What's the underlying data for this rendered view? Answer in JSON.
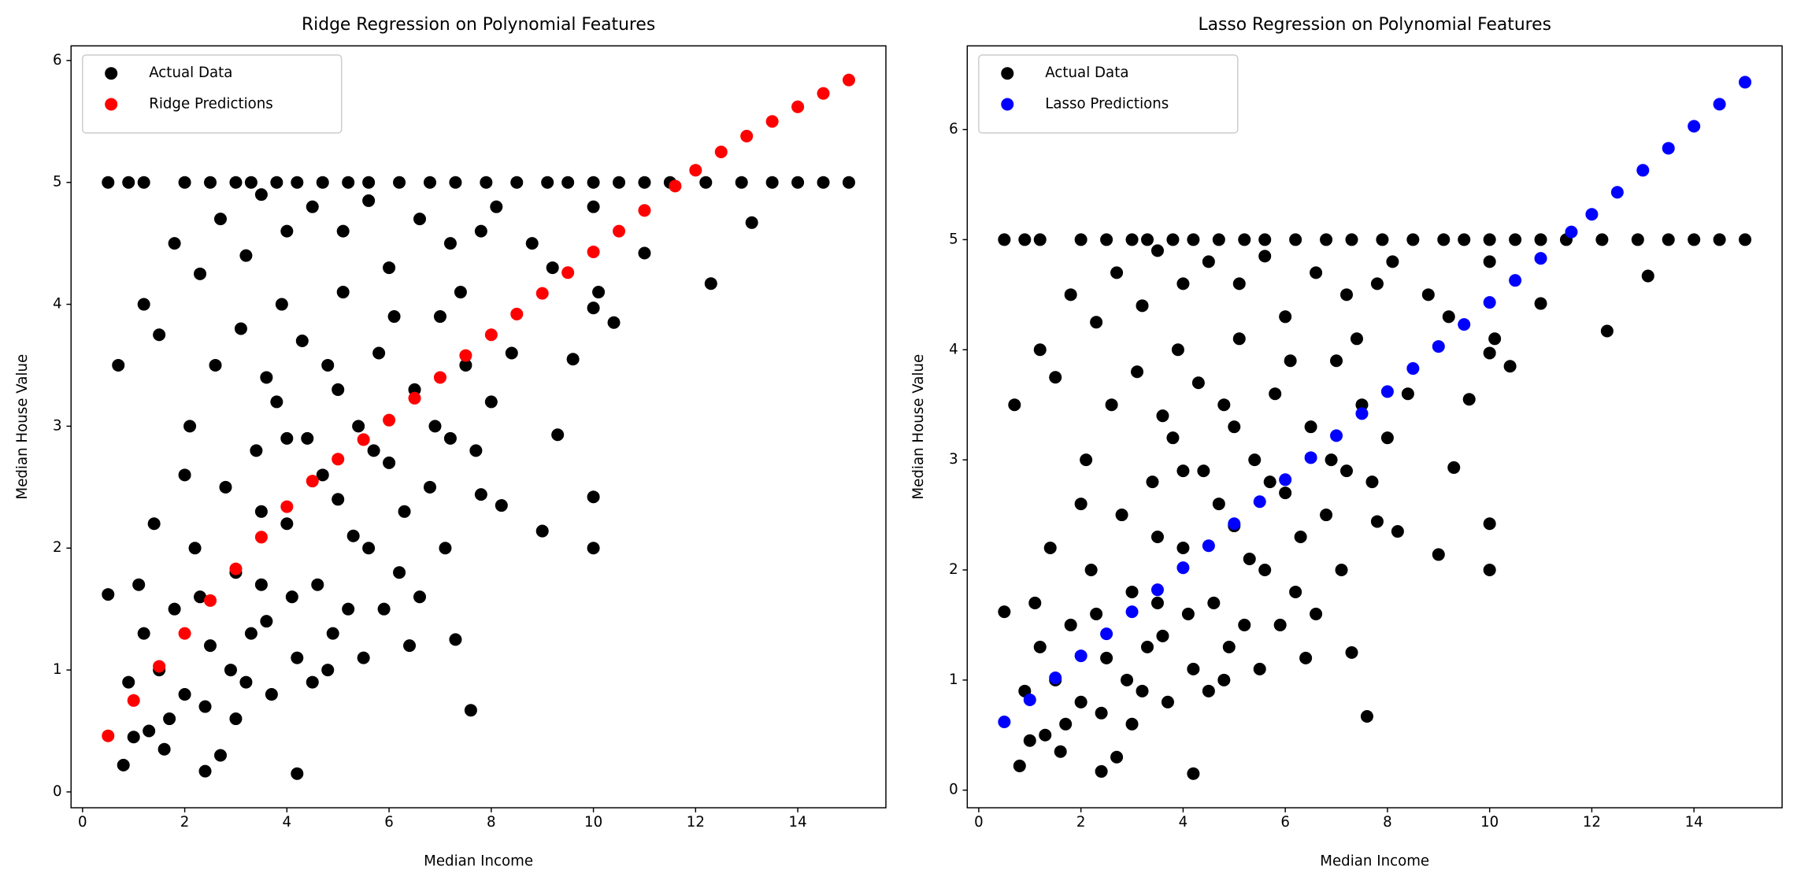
{
  "chart_data": [
    {
      "type": "scatter",
      "title": "Ridge Regression on Polynomial Features",
      "xlabel": "Median Income",
      "ylabel": "Median House Value",
      "xlim": [
        -0.225,
        15.725
      ],
      "ylim": [
        -0.13,
        6.12
      ],
      "xticks": [
        0,
        2,
        4,
        6,
        8,
        10,
        12,
        14
      ],
      "yticks": [
        0,
        1,
        2,
        3,
        4,
        5,
        6
      ],
      "legend": "upper left",
      "series": [
        {
          "name": "Actual Data",
          "color": "#000000",
          "x": [
            0.5,
            0.9,
            1.2,
            2,
            2.5,
            3,
            3.3,
            3.8,
            4.2,
            4.7,
            5.2,
            5.6,
            6.2,
            6.8,
            7.3,
            7.9,
            8.5,
            9.1,
            9.5,
            10,
            10.5,
            11,
            11.5,
            12.2,
            12.9,
            13.5,
            14,
            14.5,
            15,
            0.5,
            0.7,
            0.8,
            1.2,
            1.5,
            1.8,
            2.3,
            2.7,
            3.2,
            3.5,
            4.0,
            4.5,
            5.1,
            5.6,
            6.0,
            6.6,
            7.2,
            7.8,
            8.1,
            8.8,
            9.2,
            10.0,
            11.0,
            13.1,
            12.3,
            10.4,
            10.1,
            10.0,
            9.6,
            9.3,
            10.0,
            10.0,
            9.0,
            8.2,
            7.8,
            7.6,
            7.3,
            4.2,
            2.4,
            2.7,
            1.6,
            1.0,
            1.5,
            1.8,
            2.0,
            2.2,
            2.5,
            2.8,
            3.0,
            3.2,
            3.4,
            3.6,
            3.8,
            4.0,
            4.2,
            4.4,
            4.6,
            4.8,
            5.0,
            5.2,
            5.4,
            5.6,
            5.8,
            6.0,
            6.2,
            6.5,
            6.8,
            7.0,
            7.2,
            7.5,
            8.0,
            1.2,
            1.4,
            1.7,
            2.1,
            2.4,
            2.6,
            2.9,
            3.1,
            3.3,
            3.5,
            3.7,
            3.9,
            4.1,
            4.3,
            4.5,
            4.7,
            4.9,
            5.1,
            5.3,
            5.5,
            5.7,
            5.9,
            6.1,
            6.3,
            6.6,
            6.9,
            7.1,
            7.4,
            7.7,
            8.4,
            0.9,
            1.1,
            1.3,
            2.0,
            2.3,
            3.0,
            3.6,
            4.8,
            6.4,
            5.0,
            4.0,
            3.5
          ],
          "values": [
            5,
            5,
            5,
            5,
            5,
            5,
            5,
            5,
            5,
            5,
            5,
            5,
            5,
            5,
            5,
            5,
            5,
            5,
            5,
            5,
            5,
            5,
            5,
            5,
            5,
            5,
            5,
            5,
            5,
            1.62,
            3.5,
            0.22,
            4.0,
            3.75,
            4.5,
            4.25,
            4.7,
            4.4,
            4.9,
            4.6,
            4.8,
            4.6,
            4.85,
            4.3,
            4.7,
            4.5,
            4.6,
            4.8,
            4.5,
            4.3,
            4.8,
            4.42,
            4.67,
            4.17,
            3.85,
            4.1,
            3.97,
            3.55,
            2.93,
            2.42,
            2.0,
            2.14,
            2.35,
            2.44,
            0.67,
            1.25,
            0.15,
            0.17,
            0.3,
            0.35,
            0.45,
            1.0,
            1.5,
            0.8,
            2.0,
            1.2,
            2.5,
            1.8,
            0.9,
            2.8,
            1.4,
            3.2,
            2.2,
            1.1,
            2.9,
            1.7,
            3.5,
            2.4,
            1.5,
            3.0,
            2.0,
            3.6,
            2.7,
            1.8,
            3.3,
            2.5,
            3.9,
            2.9,
            3.5,
            3.2,
            1.3,
            2.2,
            0.6,
            3.0,
            0.7,
            3.5,
            1.0,
            3.8,
            1.3,
            2.3,
            0.8,
            4.0,
            1.6,
            3.7,
            0.9,
            2.6,
            1.3,
            4.1,
            2.1,
            1.1,
            2.8,
            1.5,
            3.9,
            2.3,
            1.6,
            3.0,
            2.0,
            4.1,
            2.8,
            3.6,
            0.9,
            1.7,
            0.5,
            2.6,
            1.6,
            0.6,
            3.4,
            1.0,
            1.2,
            3.3,
            2.9,
            1.7
          ]
        },
        {
          "name": "Ridge Predictions",
          "color": "#ff0000",
          "x": [
            0.5,
            1,
            1.5,
            2,
            2.5,
            3,
            3.5,
            4,
            4.5,
            5,
            5.5,
            6,
            6.5,
            7,
            7.5,
            8,
            8.5,
            9,
            9.5,
            10,
            10.5,
            11,
            11.6,
            12,
            12.5,
            13,
            13.5,
            14,
            14.5,
            15
          ],
          "values": [
            0.46,
            0.75,
            1.03,
            1.3,
            1.57,
            1.83,
            2.09,
            2.34,
            2.55,
            2.73,
            2.89,
            3.05,
            3.23,
            3.4,
            3.58,
            3.75,
            3.92,
            4.09,
            4.26,
            4.43,
            4.6,
            4.77,
            4.97,
            5.1,
            5.25,
            5.38,
            5.5,
            5.62,
            5.73,
            5.84
          ]
        }
      ]
    },
    {
      "type": "scatter",
      "title": "Lasso Regression on Polynomial Features",
      "xlabel": "Median Income",
      "ylabel": "Median House Value",
      "xlim": [
        -0.225,
        15.725
      ],
      "ylim": [
        -0.16,
        6.76
      ],
      "xticks": [
        0,
        2,
        4,
        6,
        8,
        10,
        12,
        14
      ],
      "yticks": [
        0,
        1,
        2,
        3,
        4,
        5,
        6
      ],
      "legend": "upper left",
      "series": [
        {
          "name": "Actual Data",
          "color": "#000000",
          "x": [
            0.5,
            0.9,
            1.2,
            2,
            2.5,
            3,
            3.3,
            3.8,
            4.2,
            4.7,
            5.2,
            5.6,
            6.2,
            6.8,
            7.3,
            7.9,
            8.5,
            9.1,
            9.5,
            10,
            10.5,
            11,
            11.5,
            12.2,
            12.9,
            13.5,
            14,
            14.5,
            15,
            0.5,
            0.7,
            0.8,
            1.2,
            1.5,
            1.8,
            2.3,
            2.7,
            3.2,
            3.5,
            4.0,
            4.5,
            5.1,
            5.6,
            6.0,
            6.6,
            7.2,
            7.8,
            8.1,
            8.8,
            9.2,
            10.0,
            11.0,
            13.1,
            12.3,
            10.4,
            10.1,
            10.0,
            9.6,
            9.3,
            10.0,
            10.0,
            9.0,
            8.2,
            7.8,
            7.6,
            7.3,
            4.2,
            2.4,
            2.7,
            1.6,
            1.0,
            1.5,
            1.8,
            2.0,
            2.2,
            2.5,
            2.8,
            3.0,
            3.2,
            3.4,
            3.6,
            3.8,
            4.0,
            4.2,
            4.4,
            4.6,
            4.8,
            5.0,
            5.2,
            5.4,
            5.6,
            5.8,
            6.0,
            6.2,
            6.5,
            6.8,
            7.0,
            7.2,
            7.5,
            8.0,
            1.2,
            1.4,
            1.7,
            2.1,
            2.4,
            2.6,
            2.9,
            3.1,
            3.3,
            3.5,
            3.7,
            3.9,
            4.1,
            4.3,
            4.5,
            4.7,
            4.9,
            5.1,
            5.3,
            5.5,
            5.7,
            5.9,
            6.1,
            6.3,
            6.6,
            6.9,
            7.1,
            7.4,
            7.7,
            8.4,
            0.9,
            1.1,
            1.3,
            2.0,
            2.3,
            3.0,
            3.6,
            4.8,
            6.4,
            5.0,
            4.0,
            3.5
          ],
          "values": [
            5,
            5,
            5,
            5,
            5,
            5,
            5,
            5,
            5,
            5,
            5,
            5,
            5,
            5,
            5,
            5,
            5,
            5,
            5,
            5,
            5,
            5,
            5,
            5,
            5,
            5,
            5,
            5,
            5,
            1.62,
            3.5,
            0.22,
            4.0,
            3.75,
            4.5,
            4.25,
            4.7,
            4.4,
            4.9,
            4.6,
            4.8,
            4.6,
            4.85,
            4.3,
            4.7,
            4.5,
            4.6,
            4.8,
            4.5,
            4.3,
            4.8,
            4.42,
            4.67,
            4.17,
            3.85,
            4.1,
            3.97,
            3.55,
            2.93,
            2.42,
            2.0,
            2.14,
            2.35,
            2.44,
            0.67,
            1.25,
            0.15,
            0.17,
            0.3,
            0.35,
            0.45,
            1.0,
            1.5,
            0.8,
            2.0,
            1.2,
            2.5,
            1.8,
            0.9,
            2.8,
            1.4,
            3.2,
            2.2,
            1.1,
            2.9,
            1.7,
            3.5,
            2.4,
            1.5,
            3.0,
            2.0,
            3.6,
            2.7,
            1.8,
            3.3,
            2.5,
            3.9,
            2.9,
            3.5,
            3.2,
            1.3,
            2.2,
            0.6,
            3.0,
            0.7,
            3.5,
            1.0,
            3.8,
            1.3,
            2.3,
            0.8,
            4.0,
            1.6,
            3.7,
            0.9,
            2.6,
            1.3,
            4.1,
            2.1,
            1.1,
            2.8,
            1.5,
            3.9,
            2.3,
            1.6,
            3.0,
            2.0,
            4.1,
            2.8,
            3.6,
            0.9,
            1.7,
            0.5,
            2.6,
            1.6,
            0.6,
            3.4,
            1.0,
            1.2,
            3.3,
            2.9,
            1.7
          ]
        },
        {
          "name": "Lasso Predictions",
          "color": "#0000ff",
          "x": [
            0.5,
            1,
            1.5,
            2,
            2.5,
            3,
            3.5,
            4,
            4.5,
            5,
            5.5,
            6,
            6.5,
            7,
            7.5,
            8,
            8.5,
            9,
            9.5,
            10,
            10.5,
            11,
            11.6,
            12,
            12.5,
            13,
            13.5,
            14,
            14.5,
            15
          ],
          "values": [
            0.62,
            0.82,
            1.02,
            1.22,
            1.42,
            1.62,
            1.82,
            2.02,
            2.22,
            2.42,
            2.62,
            2.82,
            3.02,
            3.22,
            3.42,
            3.62,
            3.83,
            4.03,
            4.23,
            4.43,
            4.63,
            4.83,
            5.07,
            5.23,
            5.43,
            5.63,
            5.83,
            6.03,
            6.23,
            6.43
          ]
        }
      ]
    }
  ]
}
